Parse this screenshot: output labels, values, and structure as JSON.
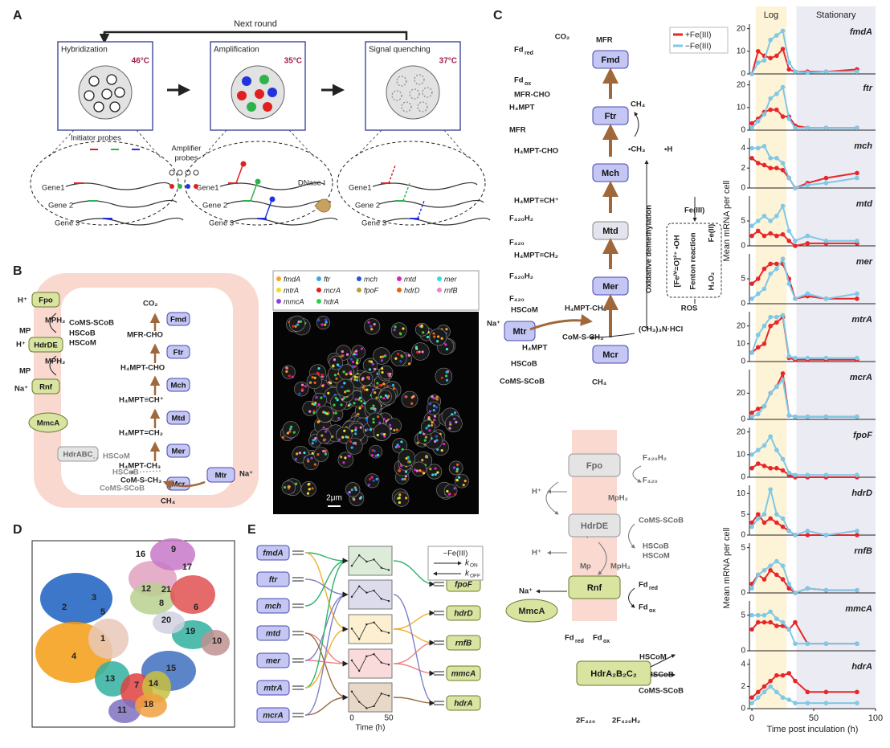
{
  "panel_a": {
    "label": "A",
    "next_round": "Next round",
    "steps": [
      {
        "title": "Hybridization",
        "temp": "46°C"
      },
      {
        "title": "Amplification",
        "temp": "35°C"
      },
      {
        "title": "Signal quenching",
        "temp": "37°C"
      }
    ],
    "initiator_probes": "Initiator probes",
    "amplifier_probes": [
      "Amplifier",
      "probes"
    ],
    "dnase": "DNase I",
    "genes": [
      "Gene1",
      "Gene 2",
      "Gene 3"
    ]
  },
  "panel_b": {
    "label": "B",
    "texts": [
      "H⁺",
      "MPH₂",
      "MP",
      "H⁺",
      "CoMS-SCoB",
      "HSCoB",
      "HSCoM",
      "MPH₂",
      "MP",
      "Na⁺",
      "CO₂",
      "MFR-CHO",
      "H₄MPT-CHO",
      "H₄MPT≡CH⁺",
      "H₄MPT=CH₂",
      "H₄MPT-CH₃",
      "CoM-S-CH₃",
      "CH₄",
      "Na⁺",
      "HSCoM",
      "HSCoB",
      "CoMS-SCoB"
    ],
    "enzymes": [
      "Fpo",
      "HdrDE",
      "Rnf",
      "MmcA",
      "HdrABC",
      "Fmd",
      "Ftr",
      "Mch",
      "Mtd",
      "Mer",
      "Mcr",
      "Mtr"
    ],
    "legend": [
      {
        "name": "fmdA",
        "color": "#f5a623"
      },
      {
        "name": "ftr",
        "color": "#3aa8e8"
      },
      {
        "name": "mch",
        "color": "#2255dd"
      },
      {
        "name": "mtd",
        "color": "#e020c0"
      },
      {
        "name": "mer",
        "color": "#30e0e0"
      },
      {
        "name": "mtrA",
        "color": "#f0e020"
      },
      {
        "name": "mcrA",
        "color": "#e02020"
      },
      {
        "name": "fpoF",
        "color": "#b8a030"
      },
      {
        "name": "hdrD",
        "color": "#e86010"
      },
      {
        "name": "rnfB",
        "color": "#f080d0"
      },
      {
        "name": "mmcA",
        "color": "#9040e0"
      },
      {
        "name": "hdrA",
        "color": "#30d040"
      }
    ],
    "scale_bar": "2μm"
  },
  "panel_c": {
    "label": "C",
    "texts": [
      "CO₂",
      "MFR",
      "Fd",
      "red",
      "Fd",
      "ox",
      "MFR-CHO",
      "H₄MPT",
      "MFR",
      "H₄MPT-CHO",
      "CH₄",
      "•CH₃",
      "•H",
      "H₄MPT≡CH⁺",
      "F₄₂₀H₂",
      "F₄₂₀",
      "H₄MPT=CH₂",
      "F₄₂₀H₂",
      "F₄₂₀",
      "HSCoM",
      "H₄MPT-CH₃",
      "Na⁺",
      "CoM-S-CH₃",
      "(CH₃)₃N·HCl",
      "H₄MPT",
      "HSCoB",
      "CoMS-SCoB",
      "CH₄",
      "Fe(III)",
      "Oxidative demethylation",
      "[Feᴵⱽ=O]²⁺  •OH",
      "Fenton reaction",
      "Fe(II)",
      "H₂O₂",
      "ROS",
      "H⁺",
      "F₄₂₀H₂",
      "F₄₂₀",
      "Mp",
      "MpH₂",
      "CoMS-SCoB",
      "H⁺",
      "HSCoB",
      "HSCoM",
      "Mp",
      "MpH₂",
      "Na⁺",
      "Fd",
      "red",
      "Fd",
      "ox",
      "Fd",
      "red",
      "Fd",
      "ox",
      "HSCoM",
      "HSCoB",
      "CoMS-SCoB",
      "2F₄₂₀",
      "2F₄₂₀H₂"
    ],
    "enzymes": [
      "Fmd",
      "Ftr",
      "Mch",
      "Mtd",
      "Mer",
      "Mtr",
      "Mcr",
      "Fpo",
      "HdrDE",
      "Rnf",
      "MmcA",
      "HdrA₂B₂C₂"
    ]
  },
  "panel_d": {
    "label": "D",
    "clusters": [
      1,
      2,
      3,
      4,
      5,
      6,
      7,
      8,
      9,
      10,
      11,
      12,
      13,
      14,
      15,
      16,
      17,
      18,
      19,
      20,
      21
    ]
  },
  "panel_e": {
    "label": "E",
    "left": [
      "fmdA",
      "ftr",
      "mch",
      "mtd",
      "mer",
      "mtrA",
      "mcrA"
    ],
    "right": [
      "fpoF",
      "hdrD",
      "rnfB",
      "mmcA",
      "hdrA"
    ],
    "legend_title": "−Fe(III)",
    "k": "k",
    "k_on": "ON",
    "k_off": "OFF",
    "time_ticks": [
      0,
      50
    ],
    "time_label": "Time (h)"
  },
  "chart_data": [
    {
      "type": "line",
      "title": "fmdA",
      "x": [
        0,
        5,
        10,
        15,
        20,
        25,
        30,
        35,
        45,
        60,
        85
      ],
      "xlim": [
        -2,
        100
      ],
      "ylim": [
        0,
        22
      ],
      "yticks": [
        0,
        10,
        20
      ],
      "regions": [
        {
          "label": "Log",
          "range": [
            3,
            28
          ],
          "color": "#fdf3d6"
        },
        {
          "label": "Stationary",
          "range": [
            36,
            100
          ],
          "color": "#ebebf3"
        }
      ],
      "series": [
        {
          "name": "+Fe(III)",
          "color": "#e8262a",
          "values": [
            0,
            10,
            8,
            7,
            8,
            11,
            2,
            1,
            1,
            1,
            2
          ]
        },
        {
          "name": "−Fe(III)",
          "color": "#7ec8e8",
          "values": [
            0,
            5,
            6,
            15,
            17,
            19,
            5,
            1,
            0.5,
            1,
            1
          ]
        }
      ]
    },
    {
      "type": "line",
      "title": "ftr",
      "x": [
        0,
        5,
        10,
        15,
        20,
        25,
        30,
        35,
        45,
        60,
        85
      ],
      "xlim": [
        -2,
        100
      ],
      "ylim": [
        0,
        22
      ],
      "yticks": [
        0,
        10,
        20
      ],
      "series": [
        {
          "name": "+Fe(III)",
          "color": "#e8262a",
          "values": [
            3,
            5,
            8,
            9,
            9,
            6,
            6,
            2,
            1,
            1,
            1
          ]
        },
        {
          "name": "−Fe(III)",
          "color": "#7ec8e8",
          "values": [
            1,
            4,
            7,
            14,
            16,
            19,
            5,
            1,
            1,
            1,
            1
          ]
        }
      ]
    },
    {
      "type": "line",
      "title": "mch",
      "x": [
        0,
        5,
        10,
        15,
        20,
        25,
        30,
        35,
        45,
        60,
        85
      ],
      "xlim": [
        -2,
        100
      ],
      "ylim": [
        0,
        5
      ],
      "yticks": [
        0,
        2,
        4
      ],
      "series": [
        {
          "name": "+Fe(III)",
          "color": "#e8262a",
          "values": [
            3,
            2.5,
            2.3,
            2,
            2,
            1.8,
            1,
            0,
            0.5,
            1,
            1.5
          ]
        },
        {
          "name": "−Fe(III)",
          "color": "#7ec8e8",
          "values": [
            4,
            4,
            4.2,
            3,
            3,
            2.5,
            1,
            0,
            0.3,
            0.5,
            1
          ]
        }
      ]
    },
    {
      "type": "line",
      "title": "mtd",
      "x": [
        0,
        5,
        10,
        15,
        20,
        25,
        30,
        35,
        45,
        60,
        85
      ],
      "xlim": [
        -2,
        100
      ],
      "ylim": [
        0,
        10
      ],
      "yticks": [
        0,
        5
      ],
      "ylabel": "Mean mRNA per cell",
      "series": [
        {
          "name": "+Fe(III)",
          "color": "#e8262a",
          "values": [
            2,
            3,
            2,
            2.5,
            2,
            2.3,
            1,
            0,
            0.5,
            0.5,
            0.5
          ]
        },
        {
          "name": "−Fe(III)",
          "color": "#7ec8e8",
          "values": [
            4,
            5,
            6,
            5,
            6,
            8,
            3,
            1,
            2,
            1,
            1
          ]
        }
      ]
    },
    {
      "type": "line",
      "title": "mer",
      "x": [
        0,
        5,
        10,
        15,
        20,
        25,
        30,
        35,
        45,
        60,
        85
      ],
      "xlim": [
        -2,
        100
      ],
      "ylim": [
        0,
        10
      ],
      "yticks": [
        0,
        5
      ],
      "series": [
        {
          "name": "+Fe(III)",
          "color": "#e8262a",
          "values": [
            4,
            5,
            7,
            8,
            8,
            8,
            5,
            1,
            1.5,
            1,
            1
          ]
        },
        {
          "name": "−Fe(III)",
          "color": "#7ec8e8",
          "values": [
            1,
            2,
            3,
            6,
            7,
            9,
            4,
            1,
            2,
            1,
            2
          ]
        }
      ]
    },
    {
      "type": "line",
      "title": "mtrA",
      "x": [
        0,
        5,
        10,
        15,
        20,
        25,
        30,
        35,
        45,
        60,
        85
      ],
      "xlim": [
        -2,
        100
      ],
      "ylim": [
        0,
        28
      ],
      "yticks": [
        0,
        10,
        20
      ],
      "series": [
        {
          "name": "+Fe(III)",
          "color": "#e8262a",
          "values": [
            5,
            8,
            10,
            20,
            22,
            25,
            2,
            1,
            1,
            1,
            1
          ]
        },
        {
          "name": "−Fe(III)",
          "color": "#7ec8e8",
          "values": [
            5,
            15,
            20,
            25,
            25,
            26,
            3,
            2,
            2,
            2,
            2
          ]
        }
      ]
    },
    {
      "type": "line",
      "title": "mcrA",
      "x": [
        0,
        5,
        10,
        15,
        20,
        25,
        30,
        35,
        45,
        60,
        85
      ],
      "xlim": [
        -2,
        100
      ],
      "ylim": [
        0,
        38
      ],
      "yticks": [
        0,
        20
      ],
      "series": [
        {
          "name": "+Fe(III)",
          "color": "#e8262a",
          "values": [
            5,
            8,
            10,
            20,
            25,
            35,
            3,
            2,
            2,
            2,
            2
          ]
        },
        {
          "name": "−Fe(III)",
          "color": "#7ec8e8",
          "values": [
            2,
            4,
            10,
            20,
            25,
            30,
            3,
            2,
            2,
            2,
            2
          ]
        }
      ]
    },
    {
      "type": "line",
      "title": "fpoF",
      "x": [
        0,
        5,
        10,
        15,
        20,
        25,
        30,
        35,
        45,
        60,
        85
      ],
      "xlim": [
        -2,
        100
      ],
      "ylim": [
        0,
        22
      ],
      "yticks": [
        0,
        10,
        20
      ],
      "series": [
        {
          "name": "+Fe(III)",
          "color": "#e8262a",
          "values": [
            4,
            6,
            5,
            4,
            4,
            3,
            1,
            0,
            0,
            0,
            0
          ]
        },
        {
          "name": "−Fe(III)",
          "color": "#7ec8e8",
          "values": [
            10,
            12,
            14,
            18,
            12,
            8,
            2,
            1,
            1,
            1,
            1
          ]
        }
      ]
    },
    {
      "type": "line",
      "title": "hdrD",
      "x": [
        0,
        5,
        10,
        15,
        20,
        25,
        30,
        35,
        45,
        60,
        85
      ],
      "xlim": [
        -2,
        100
      ],
      "ylim": [
        0,
        12
      ],
      "yticks": [
        0,
        5,
        10
      ],
      "series": [
        {
          "name": "+Fe(III)",
          "color": "#e8262a",
          "values": [
            3,
            5,
            3,
            4,
            3,
            2,
            1,
            0,
            0,
            0,
            0
          ]
        },
        {
          "name": "−Fe(III)",
          "color": "#7ec8e8",
          "values": [
            2,
            4,
            5,
            11,
            5,
            4,
            1,
            0,
            1,
            0,
            1
          ]
        }
      ]
    },
    {
      "type": "line",
      "title": "rnfB",
      "x": [
        0,
        5,
        10,
        15,
        20,
        25,
        30,
        35,
        45,
        60,
        85
      ],
      "xlim": [
        -2,
        100
      ],
      "ylim": [
        0,
        5.5
      ],
      "yticks": [
        0,
        5
      ],
      "ylabel": "Mean mRNA per cell",
      "series": [
        {
          "name": "+Fe(III)",
          "color": "#e8262a",
          "values": [
            1,
            2,
            1.5,
            2.5,
            2,
            1.5,
            0.5,
            0,
            0.5,
            0.3,
            0.3
          ]
        },
        {
          "name": "−Fe(III)",
          "color": "#7ec8e8",
          "values": [
            0.5,
            2,
            2.5,
            3,
            3.5,
            3,
            1,
            0,
            0.5,
            0.3,
            0.3
          ]
        }
      ]
    },
    {
      "type": "line",
      "title": "mmcA",
      "x": [
        0,
        5,
        10,
        15,
        20,
        25,
        30,
        35,
        45,
        60,
        85
      ],
      "xlim": [
        -2,
        100
      ],
      "ylim": [
        0,
        7
      ],
      "yticks": [
        0,
        5
      ],
      "series": [
        {
          "name": "+Fe(III)",
          "color": "#e8262a",
          "values": [
            3,
            4,
            4,
            4,
            3.5,
            3.5,
            3,
            4,
            1,
            1,
            1
          ]
        },
        {
          "name": "−Fe(III)",
          "color": "#7ec8e8",
          "values": [
            5,
            5,
            5,
            5.5,
            4.5,
            4,
            3,
            1,
            1,
            1,
            1
          ]
        }
      ]
    },
    {
      "type": "line",
      "title": "hdrA",
      "x": [
        0,
        5,
        10,
        15,
        20,
        25,
        30,
        35,
        45,
        60,
        85
      ],
      "xlim": [
        -2,
        100
      ],
      "ylim": [
        0,
        4.5
      ],
      "yticks": [
        0,
        2,
        4
      ],
      "xticks": [
        0,
        50,
        100
      ],
      "xlabel": "Time post inculation (h)",
      "series": [
        {
          "name": "+Fe(III)",
          "color": "#e8262a",
          "values": [
            1,
            1.5,
            2,
            2.5,
            3,
            3,
            3.2,
            2.5,
            1.5,
            1.5,
            1.5
          ]
        },
        {
          "name": "−Fe(III)",
          "color": "#7ec8e8",
          "values": [
            0.5,
            1,
            1.5,
            2,
            1.5,
            1,
            0.8,
            0.5,
            0.5,
            0.5,
            0.5
          ]
        }
      ]
    }
  ]
}
